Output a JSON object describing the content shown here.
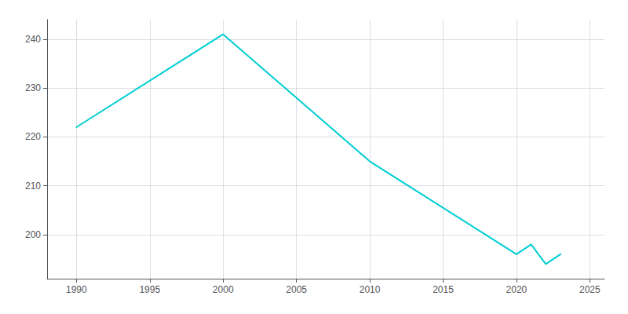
{
  "chart_data": {
    "type": "line",
    "x": [
      1990,
      2000,
      2010,
      2020,
      2021,
      2022,
      2023
    ],
    "values": [
      222,
      241,
      215,
      196,
      198,
      194,
      196
    ],
    "color": "#00CED1",
    "xlim": [
      1988,
      2026
    ],
    "ylim": [
      191,
      244
    ],
    "xticks": [
      1990,
      1995,
      2000,
      2005,
      2010,
      2015,
      2020,
      2025
    ],
    "yticks": [
      200,
      210,
      220,
      230,
      240
    ],
    "grid": true
  }
}
